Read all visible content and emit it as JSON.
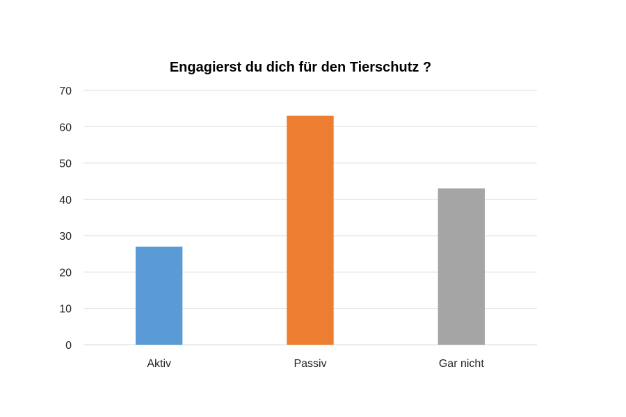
{
  "chart_data": {
    "type": "bar",
    "title": "Engagierst du dich für den Tierschutz ?",
    "xlabel": "",
    "ylabel": "",
    "categories": [
      "Aktiv",
      "Passiv",
      "Gar nicht"
    ],
    "values": [
      27,
      63,
      43
    ],
    "bar_colors": [
      "#5B9BD5",
      "#ED7D31",
      "#A5A5A5"
    ],
    "ylim": [
      0,
      70
    ],
    "yticks": [
      "0",
      "10",
      "20",
      "30",
      "40",
      "50",
      "60",
      "70"
    ],
    "grid": true,
    "legend": "none"
  }
}
